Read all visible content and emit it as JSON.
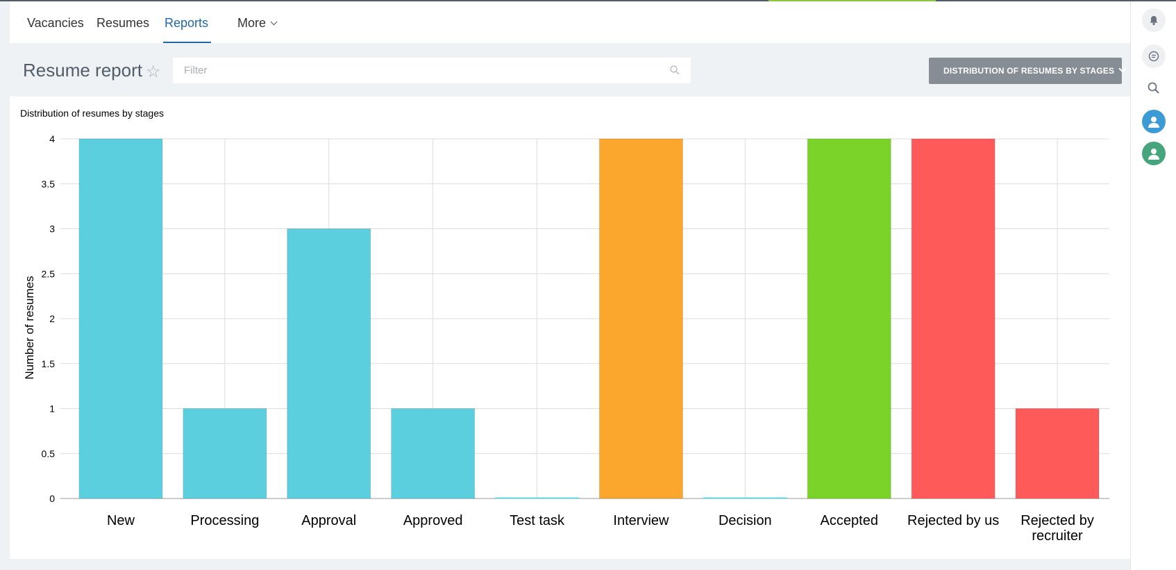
{
  "nav": {
    "items": [
      {
        "label": "Vacancies"
      },
      {
        "label": "Resumes"
      },
      {
        "label": "Reports"
      },
      {
        "label": "More"
      }
    ]
  },
  "header": {
    "title": "Resume report",
    "filter_placeholder": "Filter",
    "report_button": "DISTRIBUTION OF RESUMES BY STAGES"
  },
  "sidebar": {
    "icons": [
      "bell-icon",
      "chat-icon",
      "search-icon",
      "user-avatar-blue",
      "user-avatar-green"
    ]
  },
  "colors": {
    "accent": "#2067b0",
    "cyan": "#5bcfde",
    "orange": "#fba62c",
    "green": "#7bd32a",
    "red": "#ff5a5a"
  },
  "chart_data": {
    "type": "bar",
    "title": "Distribution of resumes by stages",
    "ylabel": "Number of resumes",
    "xlabel": "",
    "ylim": [
      0,
      4
    ],
    "yticks": [
      "0",
      "0.5",
      "1",
      "1.5",
      "2",
      "2.5",
      "3",
      "3.5",
      "4"
    ],
    "grid": true,
    "categories": [
      "New",
      "Processing",
      "Approval",
      "Approved",
      "Test task",
      "Interview",
      "Decision",
      "Accepted",
      "Rejected by us",
      "Rejected by recruiter"
    ],
    "values": [
      4,
      1,
      3,
      1,
      0,
      4,
      0,
      4,
      4,
      1
    ],
    "bar_colors": [
      "#5bcfde",
      "#5bcfde",
      "#5bcfde",
      "#5bcfde",
      "#5bcfde",
      "#fba62c",
      "#5bcfde",
      "#7bd32a",
      "#ff5a5a",
      "#ff5a5a"
    ]
  }
}
